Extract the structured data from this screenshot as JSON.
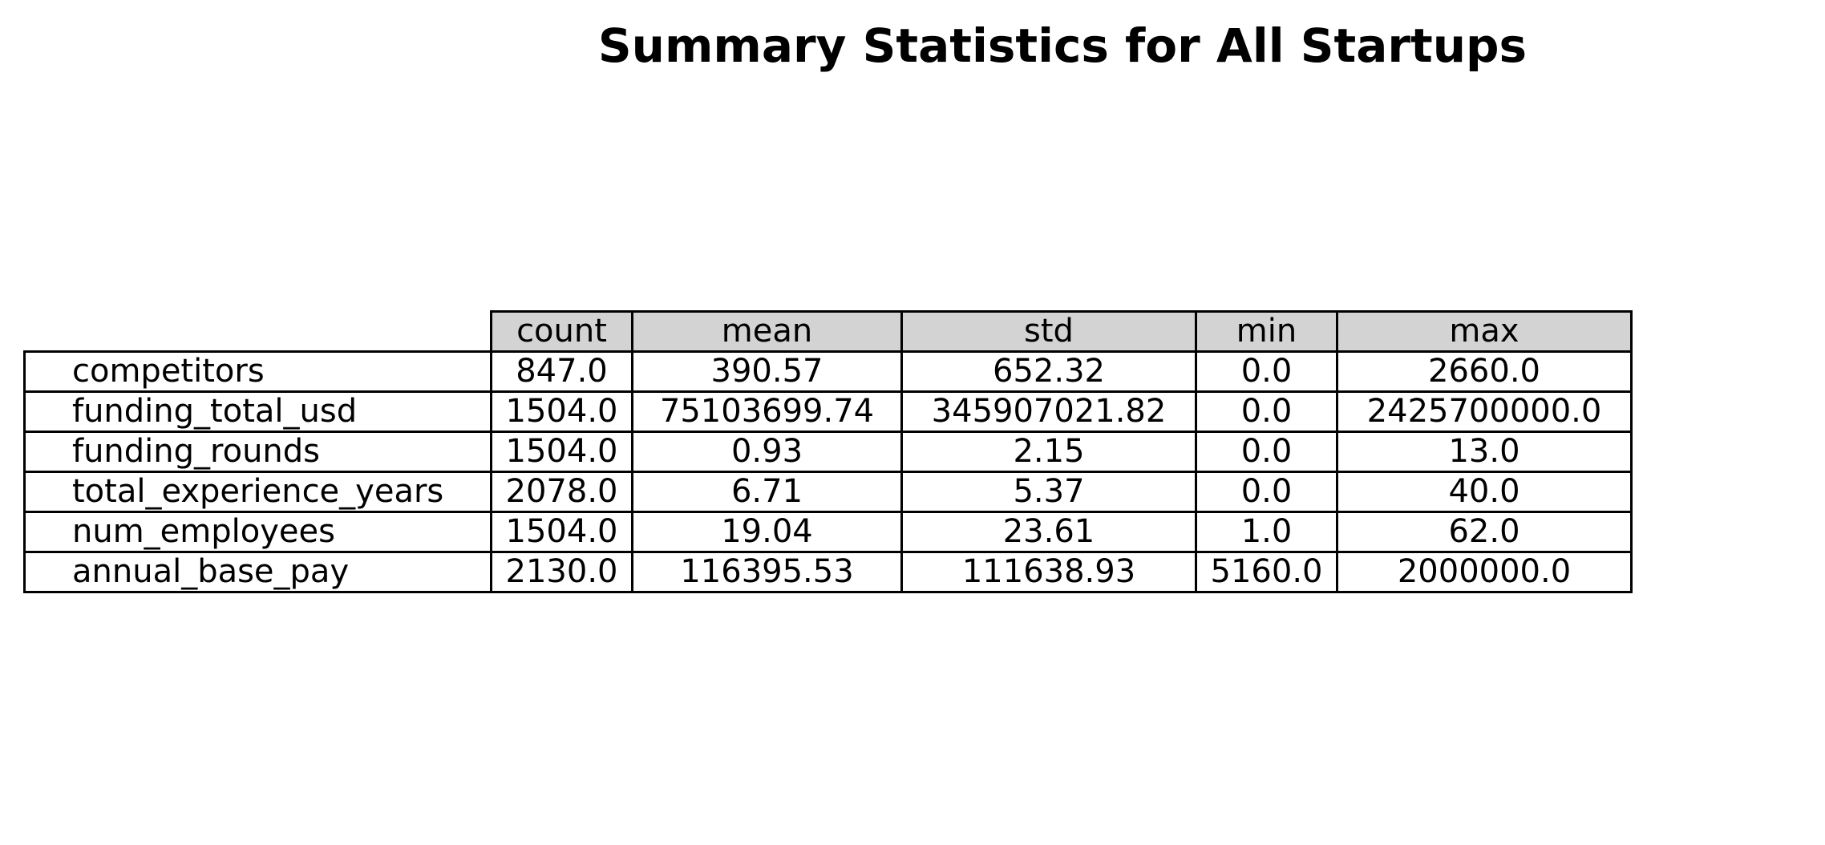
{
  "chart_data": {
    "type": "table",
    "title": "Summary Statistics for All Startups",
    "columns": [
      "count",
      "mean",
      "std",
      "min",
      "max"
    ],
    "rows": [
      {
        "label": "competitors",
        "cells": [
          "847.0",
          "390.57",
          "652.32",
          "0.0",
          "2660.0"
        ]
      },
      {
        "label": "funding_total_usd",
        "cells": [
          "1504.0",
          "75103699.74",
          "345907021.82",
          "0.0",
          "2425700000.0"
        ]
      },
      {
        "label": "funding_rounds",
        "cells": [
          "1504.0",
          "0.93",
          "2.15",
          "0.0",
          "13.0"
        ]
      },
      {
        "label": "total_experience_years",
        "cells": [
          "2078.0",
          "6.71",
          "5.37",
          "0.0",
          "40.0"
        ]
      },
      {
        "label": "num_employees",
        "cells": [
          "1504.0",
          "19.04",
          "23.61",
          "1.0",
          "62.0"
        ]
      },
      {
        "label": "annual_base_pay",
        "cells": [
          "2130.0",
          "116395.53",
          "111638.93",
          "5160.0",
          "2000000.0"
        ]
      }
    ],
    "colors": {
      "header_fill": "#d3d3d3",
      "cell_fill": "#ffffff",
      "border": "#000000"
    }
  }
}
